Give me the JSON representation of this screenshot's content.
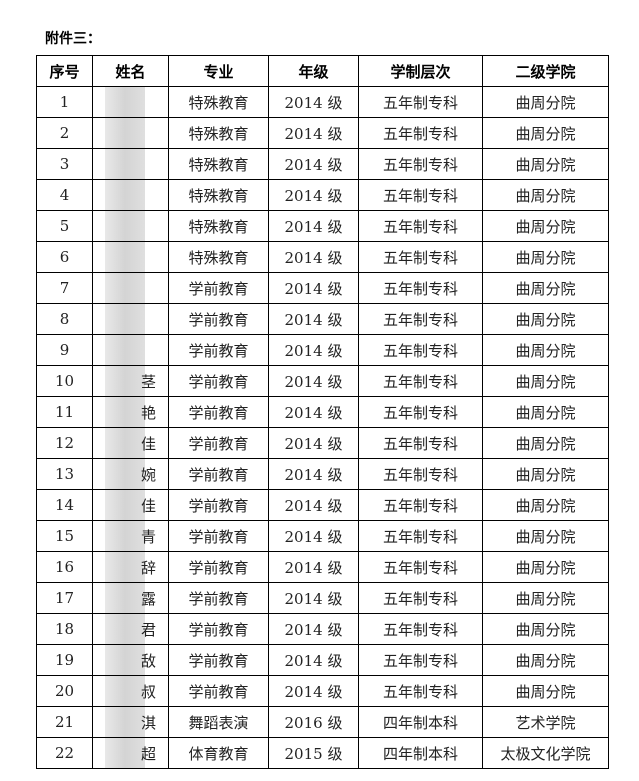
{
  "title": "附件三：",
  "headers": [
    "序号",
    "姓名",
    "专业",
    "年级",
    "学制层次",
    "二级学院"
  ],
  "rows": [
    [
      "1",
      "",
      "特殊教育",
      "2014 级",
      "五年制专科",
      "曲周分院"
    ],
    [
      "2",
      "",
      "特殊教育",
      "2014 级",
      "五年制专科",
      "曲周分院"
    ],
    [
      "3",
      "",
      "特殊教育",
      "2014 级",
      "五年制专科",
      "曲周分院"
    ],
    [
      "4",
      "",
      "特殊教育",
      "2014 级",
      "五年制专科",
      "曲周分院"
    ],
    [
      "5",
      "",
      "特殊教育",
      "2014 级",
      "五年制专科",
      "曲周分院"
    ],
    [
      "6",
      "",
      "特殊教育",
      "2014 级",
      "五年制专科",
      "曲周分院"
    ],
    [
      "7",
      "",
      "学前教育",
      "2014 级",
      "五年制专科",
      "曲周分院"
    ],
    [
      "8",
      "",
      "学前教育",
      "2014 级",
      "五年制专科",
      "曲周分院"
    ],
    [
      "9",
      "",
      "学前教育",
      "2014 级",
      "五年制专科",
      "曲周分院"
    ],
    [
      "10",
      "茎",
      "学前教育",
      "2014 级",
      "五年制专科",
      "曲周分院"
    ],
    [
      "11",
      "艳",
      "学前教育",
      "2014 级",
      "五年制专科",
      "曲周分院"
    ],
    [
      "12",
      "佳",
      "学前教育",
      "2014 级",
      "五年制专科",
      "曲周分院"
    ],
    [
      "13",
      "婉",
      "学前教育",
      "2014 级",
      "五年制专科",
      "曲周分院"
    ],
    [
      "14",
      "佳",
      "学前教育",
      "2014 级",
      "五年制专科",
      "曲周分院"
    ],
    [
      "15",
      "青",
      "学前教育",
      "2014 级",
      "五年制专科",
      "曲周分院"
    ],
    [
      "16",
      "辞",
      "学前教育",
      "2014 级",
      "五年制专科",
      "曲周分院"
    ],
    [
      "17",
      "露",
      "学前教育",
      "2014 级",
      "五年制专科",
      "曲周分院"
    ],
    [
      "18",
      "君",
      "学前教育",
      "2014 级",
      "五年制专科",
      "曲周分院"
    ],
    [
      "19",
      "敌",
      "学前教育",
      "2014 级",
      "五年制专科",
      "曲周分院"
    ],
    [
      "20",
      "叔",
      "学前教育",
      "2014 级",
      "五年制专科",
      "曲周分院"
    ],
    [
      "21",
      "淇",
      "舞蹈表演",
      "2016 级",
      "四年制本科",
      "艺术学院"
    ],
    [
      "22",
      "超",
      "体育教育",
      "2015 级",
      "四年制本科",
      "太极文化学院"
    ]
  ]
}
